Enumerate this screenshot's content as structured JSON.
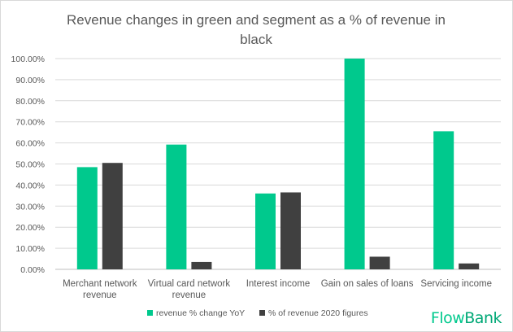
{
  "chart_data": {
    "type": "bar",
    "title": "Revenue changes in green and segment as a % of revenue in black",
    "title_lines": [
      "Revenue changes in green and segment as a % of revenue in",
      "black"
    ],
    "categories": [
      "Merchant network revenue",
      "Virtual card network revenue",
      "Interest income",
      "Gain on sales of loans",
      "Servicing income"
    ],
    "category_lines": [
      [
        "Merchant network",
        "revenue"
      ],
      [
        "Virtual card network",
        "revenue"
      ],
      [
        "Interest income"
      ],
      [
        "Gain on sales of loans"
      ],
      [
        "Servicing income"
      ]
    ],
    "series": [
      {
        "name": "revenue % change YoY",
        "values": [
          0.485,
          0.592,
          0.36,
          1.0,
          0.655
        ],
        "color": "#00c98d"
      },
      {
        "name": "% of revenue 2020 figures",
        "values": [
          0.505,
          0.035,
          0.365,
          0.06,
          0.028
        ],
        "color": "#404040"
      }
    ],
    "ylim": [
      0,
      1.0
    ],
    "yticks": [
      0,
      0.1,
      0.2,
      0.3,
      0.4,
      0.5,
      0.6,
      0.7,
      0.8,
      0.9,
      1.0
    ],
    "ytick_labels": [
      "0.00%",
      "10.00%",
      "20.00%",
      "30.00%",
      "40.00%",
      "50.00%",
      "60.00%",
      "70.00%",
      "80.00%",
      "90.00%",
      "100.00%"
    ],
    "grid": true,
    "legend": "bottom",
    "xlabel": "",
    "ylabel": ""
  },
  "brand": {
    "part1": "Flow",
    "part2": "Bank",
    "color1": "#00c98d",
    "color2": "#00a876"
  }
}
